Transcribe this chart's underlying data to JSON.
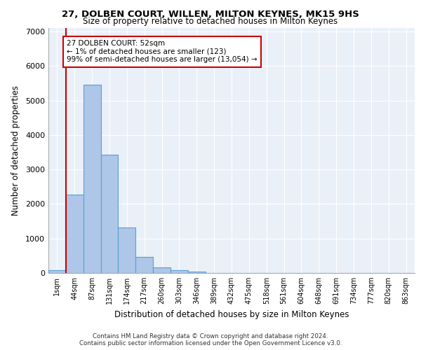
{
  "title1": "27, DOLBEN COURT, WILLEN, MILTON KEYNES, MK15 9HS",
  "title2": "Size of property relative to detached houses in Milton Keynes",
  "xlabel": "Distribution of detached houses by size in Milton Keynes",
  "ylabel": "Number of detached properties",
  "bar_labels": [
    "1sqm",
    "44sqm",
    "87sqm",
    "131sqm",
    "174sqm",
    "217sqm",
    "260sqm",
    "303sqm",
    "346sqm",
    "389sqm",
    "432sqm",
    "475sqm",
    "518sqm",
    "561sqm",
    "604sqm",
    "648sqm",
    "691sqm",
    "734sqm",
    "777sqm",
    "820sqm",
    "863sqm"
  ],
  "bar_values": [
    80,
    2270,
    5460,
    3430,
    1310,
    460,
    160,
    80,
    50,
    0,
    0,
    0,
    0,
    0,
    0,
    0,
    0,
    0,
    0,
    0,
    0
  ],
  "bar_color": "#aec6e8",
  "bar_edge_color": "#5a9fd4",
  "vline_x": 0.5,
  "vline_color": "#cc0000",
  "annotation_text": "27 DOLBEN COURT: 52sqm\n← 1% of detached houses are smaller (123)\n99% of semi-detached houses are larger (13,054) →",
  "annotation_box_color": "#ffffff",
  "annotation_box_edge": "#cc0000",
  "ylim": [
    0,
    7100
  ],
  "yticks": [
    0,
    1000,
    2000,
    3000,
    4000,
    5000,
    6000,
    7000
  ],
  "background_color": "#eaf0f8",
  "footer_line1": "Contains HM Land Registry data © Crown copyright and database right 2024.",
  "footer_line2": "Contains public sector information licensed under the Open Government Licence v3.0."
}
